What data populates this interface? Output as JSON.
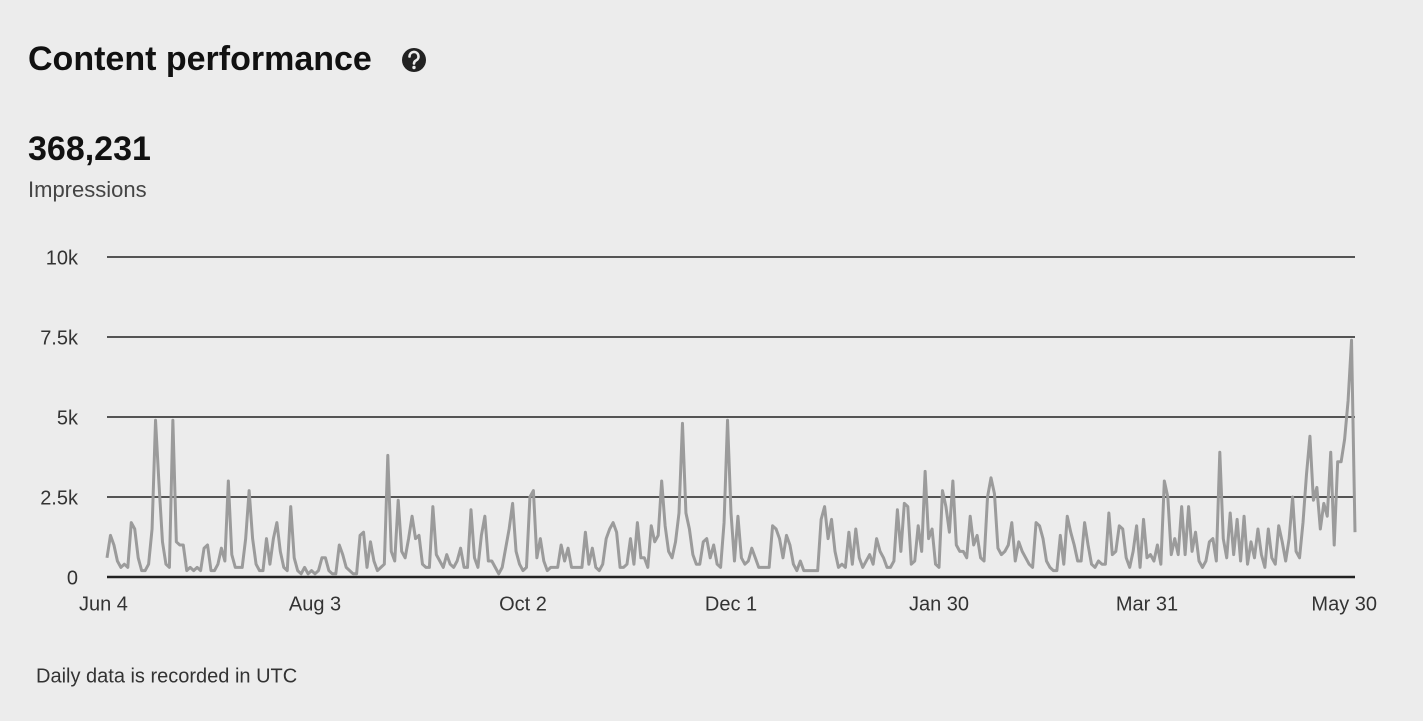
{
  "chart_data": {
    "type": "line",
    "title": "Content performance",
    "summary": {
      "value": "368,231",
      "label": "Impressions"
    },
    "footnote": "Daily data is recorded in UTC",
    "color": "#9b9b9b",
    "grid": true,
    "ylim": [
      0,
      10000
    ],
    "yticks": [
      {
        "value": 0,
        "label": "0"
      },
      {
        "value": 2500,
        "label": "2.5k"
      },
      {
        "value": 5000,
        "label": "5k"
      },
      {
        "value": 7500,
        "label": "7.5k"
      },
      {
        "value": 10000,
        "label": "10k"
      }
    ],
    "categories": [
      "Jun 4",
      null,
      null,
      null,
      null,
      null,
      null,
      null,
      null,
      null,
      null,
      null,
      null,
      null,
      null,
      null,
      null,
      null,
      null,
      null,
      null,
      null,
      null,
      null,
      null,
      null,
      null,
      null,
      null,
      null,
      null,
      null,
      null,
      null,
      null,
      null,
      null,
      null,
      null,
      null,
      null,
      null,
      null,
      null,
      null,
      null,
      null,
      null,
      null,
      null,
      null,
      null,
      null,
      null,
      null,
      null,
      null,
      null,
      null,
      null,
      "Aug 3",
      null,
      null,
      null,
      null,
      null,
      null,
      null,
      null,
      null,
      null,
      null,
      null,
      null,
      null,
      null,
      null,
      null,
      null,
      null,
      null,
      null,
      null,
      null,
      null,
      null,
      null,
      null,
      null,
      null,
      null,
      null,
      null,
      null,
      null,
      null,
      null,
      null,
      null,
      null,
      null,
      null,
      null,
      null,
      null,
      null,
      null,
      null,
      null,
      null,
      null,
      null,
      null,
      null,
      null,
      null,
      null,
      null,
      null,
      null,
      "Oct 2",
      null,
      null,
      null,
      null,
      null,
      null,
      null,
      null,
      null,
      null,
      null,
      null,
      null,
      null,
      null,
      null,
      null,
      null,
      null,
      null,
      null,
      null,
      null,
      null,
      null,
      null,
      null,
      null,
      null,
      null,
      null,
      null,
      null,
      null,
      null,
      null,
      null,
      null,
      null,
      null,
      null,
      null,
      null,
      null,
      null,
      null,
      null,
      null,
      null,
      null,
      null,
      null,
      null,
      null,
      null,
      null,
      null,
      null,
      null,
      "Dec 1",
      null,
      null,
      null,
      null,
      null,
      null,
      null,
      null,
      null,
      null,
      null,
      null,
      null,
      null,
      null,
      null,
      null,
      null,
      null,
      null,
      null,
      null,
      null,
      null,
      null,
      null,
      null,
      null,
      null,
      null,
      null,
      null,
      null,
      null,
      null,
      null,
      null,
      null,
      null,
      null,
      null,
      null,
      null,
      null,
      null,
      null,
      null,
      null,
      null,
      null,
      null,
      null,
      null,
      null,
      null,
      null,
      null,
      null,
      null,
      "Jan 30",
      null,
      null,
      null,
      null,
      null,
      null,
      null,
      null,
      null,
      null,
      null,
      null,
      null,
      null,
      null,
      null,
      null,
      null,
      null,
      null,
      null,
      null,
      null,
      null,
      null,
      null,
      null,
      null,
      null,
      null,
      null,
      null,
      null,
      null,
      null,
      null,
      null,
      null,
      null,
      null,
      null,
      null,
      null,
      null,
      null,
      null,
      null,
      null,
      null,
      null,
      null,
      null,
      null,
      null,
      null,
      null,
      null,
      null,
      null,
      "Mar 31",
      null,
      null,
      null,
      null,
      null,
      null,
      null,
      null,
      null,
      null,
      null,
      null,
      null,
      null,
      null,
      null,
      null,
      null,
      null,
      null,
      null,
      null,
      null,
      null,
      null,
      null,
      null,
      null,
      null,
      null,
      null,
      null,
      null,
      null,
      null,
      null,
      null,
      null,
      null,
      null,
      null,
      null,
      null,
      null,
      null,
      null,
      null,
      null,
      null,
      null,
      null,
      null,
      null,
      null,
      null,
      null,
      null,
      null,
      null,
      "May 30"
    ],
    "values": [
      600,
      1300,
      1000,
      500,
      300,
      400,
      300,
      1700,
      1500,
      600,
      200,
      200,
      400,
      1500,
      4900,
      2900,
      1100,
      400,
      300,
      4900,
      1100,
      1000,
      1000,
      200,
      300,
      200,
      300,
      200,
      900,
      1000,
      200,
      200,
      400,
      900,
      500,
      3000,
      700,
      300,
      300,
      300,
      1200,
      2700,
      1200,
      400,
      200,
      200,
      1200,
      400,
      1200,
      1700,
      800,
      300,
      200,
      2200,
      600,
      200,
      100,
      300,
      100,
      200,
      100,
      200,
      600,
      600,
      200,
      100,
      100,
      1000,
      700,
      300,
      200,
      100,
      100,
      1300,
      1400,
      300,
      1100,
      500,
      200,
      300,
      400,
      3800,
      800,
      500,
      2400,
      800,
      600,
      1200,
      1900,
      1200,
      1300,
      400,
      300,
      300,
      2200,
      700,
      500,
      300,
      700,
      400,
      300,
      500,
      900,
      300,
      300,
      2100,
      600,
      300,
      1300,
      1900,
      500,
      500,
      300,
      100,
      300,
      900,
      1500,
      2300,
      800,
      400,
      200,
      300,
      2500,
      2700,
      600,
      1200,
      500,
      200,
      300,
      300,
      300,
      1000,
      500,
      900,
      300,
      300,
      300,
      300,
      1400,
      400,
      900,
      300,
      200,
      400,
      1200,
      1500,
      1700,
      1400,
      300,
      300,
      400,
      1200,
      400,
      1700,
      600,
      600,
      300,
      1600,
      1100,
      1300,
      3000,
      1600,
      800,
      600,
      1100,
      2000,
      4800,
      2000,
      1500,
      700,
      400,
      400,
      1100,
      1200,
      600,
      1000,
      400,
      300,
      1700,
      4900,
      2000,
      500,
      1900,
      600,
      400,
      500,
      900,
      600,
      300,
      300,
      300,
      300,
      1600,
      1500,
      1200,
      600,
      1300,
      1000,
      400,
      200,
      500,
      200,
      200,
      200,
      200,
      200,
      1800,
      2200,
      1200,
      1800,
      800,
      300,
      400,
      300,
      1400,
      400,
      1500,
      600,
      300,
      500,
      700,
      400,
      1200,
      800,
      600,
      300,
      300,
      500,
      2100,
      800,
      2300,
      2200,
      400,
      500,
      1600,
      800,
      3300,
      1200,
      1500,
      400,
      300,
      2700,
      2200,
      1400,
      3000,
      1000,
      800,
      800,
      600,
      1900,
      1000,
      1300,
      600,
      500,
      2500,
      3100,
      2600,
      900,
      700,
      800,
      1000,
      1700,
      500,
      1100,
      800,
      600,
      400,
      300,
      1700,
      1600,
      1200,
      500,
      300,
      200,
      200,
      1300,
      400,
      1900,
      1400,
      1000,
      500,
      500,
      1700,
      1000,
      400,
      300,
      500,
      400,
      400,
      2000,
      700,
      800,
      1600,
      1500,
      600,
      300,
      800,
      1600,
      300,
      1800,
      600,
      700,
      500,
      1000,
      400,
      3000,
      2500,
      700,
      1200,
      700,
      2200,
      700,
      2200,
      800,
      1400,
      500,
      300,
      500,
      1100,
      1200,
      500,
      3900,
      1200,
      600,
      2000,
      700,
      1800,
      500,
      1900,
      400,
      1100,
      600,
      1500,
      700,
      300,
      1500,
      600,
      400,
      1600,
      1100,
      500,
      1200,
      2500,
      800,
      600,
      1700,
      3200,
      4400,
      2400,
      2800,
      1500,
      2300,
      1900,
      3900,
      1000,
      3600,
      3600,
      4300,
      5500,
      7400,
      1400
    ]
  }
}
